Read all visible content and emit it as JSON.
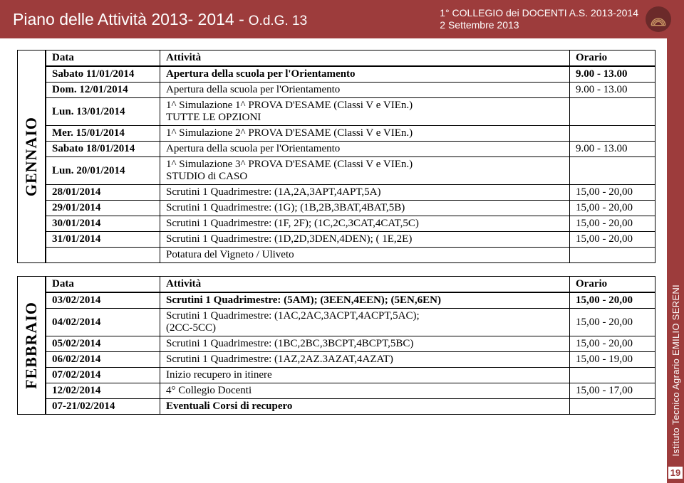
{
  "header": {
    "title": "Piano delle Attività 2013- 2014 -",
    "sub": "O.d.G. 13",
    "right_line1": "1° COLLEGIO dei DOCENTI A.S. 2013-2014",
    "right_line2": "2 Settembre 2013"
  },
  "side": {
    "label": "Istituto Tecnico Agrario EMILIO SERENI",
    "page": "19"
  },
  "months": {
    "gennaio": {
      "label": "GENNAIO",
      "headers": {
        "date": "Data",
        "activity": "Attività",
        "time": "Orario"
      },
      "rows": [
        {
          "date": "Sabato 11/01/2014",
          "activity": "Apertura della scuola per l'Orientamento",
          "time": "9.00 - 13.00"
        },
        {
          "date": "Dom. 12/01/2014",
          "activity": "Apertura della scuola per l'Orientamento",
          "time": "9.00 - 13.00"
        },
        {
          "date": "Lun. 13/01/2014",
          "activity": "1^ Simulazione 1^ PROVA D'ESAME (Classi V e VIEn.)\nTUTTE LE OPZIONI",
          "time": ""
        },
        {
          "date": "Mer. 15/01/2014",
          "activity": "1^ Simulazione 2^ PROVA D'ESAME (Classi V e VIEn.)",
          "time": ""
        },
        {
          "date": "Sabato 18/01/2014",
          "activity": "Apertura della scuola per l'Orientamento",
          "time": "9.00 - 13.00"
        },
        {
          "date": "Lun. 20/01/2014",
          "activity": "1^ Simulazione 3^ PROVA D'ESAME (Classi V e VIEn.)\nSTUDIO di CASO",
          "time": ""
        },
        {
          "date": "28/01/2014",
          "activity": "Scrutini 1 Quadrimestre: (1A,2A,3APT,4APT,5A)",
          "time": "15,00 - 20,00"
        },
        {
          "date": "29/01/2014",
          "activity": "Scrutini 1 Quadrimestre: (1G); (1B,2B,3BAT,4BAT,5B)",
          "time": "15,00 - 20,00"
        },
        {
          "date": "30/01/2014",
          "activity": "Scrutini 1 Quadrimestre: (1F, 2F); (1C,2C,3CAT,4CAT,5C)",
          "time": "15,00 - 20,00"
        },
        {
          "date": "31/01/2014",
          "activity": "Scrutini 1 Quadrimestre: (1D,2D,3DEN,4DEN); ( 1E,2E)",
          "time": "15,00 - 20,00"
        },
        {
          "date": "",
          "activity": "Potatura del Vigneto / Uliveto",
          "time": ""
        }
      ]
    },
    "febbraio": {
      "label": "FEBBRAIO",
      "headers": {
        "date": "Data",
        "activity": "Attività",
        "time": "Orario"
      },
      "rows": [
        {
          "date": "03/02/2014",
          "activity": "Scrutini 1 Quadrimestre: (5AM); (3EEN,4EEN); (5EN,6EN)",
          "time": "15,00 - 20,00"
        },
        {
          "date": "04/02/2014",
          "activity": "Scrutini 1 Quadrimestre: (1AC,2AC,3ACPT,4ACPT,5AC);\n(2CC-5CC)",
          "time": "15,00 - 20,00"
        },
        {
          "date": "05/02/2014",
          "activity": "Scrutini 1 Quadrimestre: (1BC,2BC,3BCPT,4BCPT,5BC)",
          "time": "15,00 - 20,00"
        },
        {
          "date": "06/02/2014",
          "activity": "Scrutini 1 Quadrimestre: (1AZ,2AZ.3AZAT,4AZAT)",
          "time": "15,00 - 19,00"
        },
        {
          "date": "07/02/2014",
          "activity": "Inizio recupero in itinere",
          "time": ""
        },
        {
          "date": "12/02/2014",
          "activity": "4° Collegio Docenti",
          "time": "15,00 - 17,00"
        },
        {
          "date": "07-21/02/2014",
          "activity": "Eventuali Corsi di recupero",
          "time": ""
        }
      ]
    }
  }
}
